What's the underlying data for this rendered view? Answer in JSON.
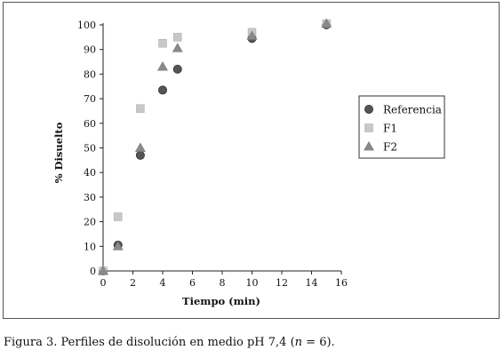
{
  "chart_data": {
    "type": "scatter",
    "xlabel": "Tiempo (min)",
    "ylabel": "% Disuelto",
    "xlim": [
      0,
      16
    ],
    "ylim": [
      0,
      100
    ],
    "xticks": [
      0,
      2,
      4,
      6,
      8,
      10,
      12,
      14,
      16
    ],
    "yticks": [
      0,
      10,
      20,
      30,
      40,
      50,
      60,
      70,
      80,
      90,
      100
    ],
    "grid": false,
    "legend_position": "right",
    "series": [
      {
        "name": "Referencia",
        "marker": "circle",
        "color": "#555555",
        "x": [
          0,
          1,
          2.5,
          4,
          5,
          10,
          15
        ],
        "y": [
          0,
          10.5,
          47,
          73.5,
          82,
          94.5,
          100
        ]
      },
      {
        "name": "F1",
        "marker": "square",
        "color": "#c8c8c8",
        "x": [
          0,
          1,
          2.5,
          4,
          5,
          10,
          15
        ],
        "y": [
          0,
          22,
          66,
          92.5,
          95,
          97,
          100.5
        ]
      },
      {
        "name": "F2",
        "marker": "triangle",
        "color": "#8a8a8a",
        "x": [
          0,
          1,
          2.5,
          4,
          5,
          10,
          15
        ],
        "y": [
          0,
          10,
          50,
          83,
          90.5,
          95.5,
          100.5
        ]
      }
    ]
  },
  "caption": {
    "prefix": "Figura 3. Perfiles de disolución en medio pH 7,4 (",
    "n_symbol": "n",
    "suffix": " = 6)."
  }
}
